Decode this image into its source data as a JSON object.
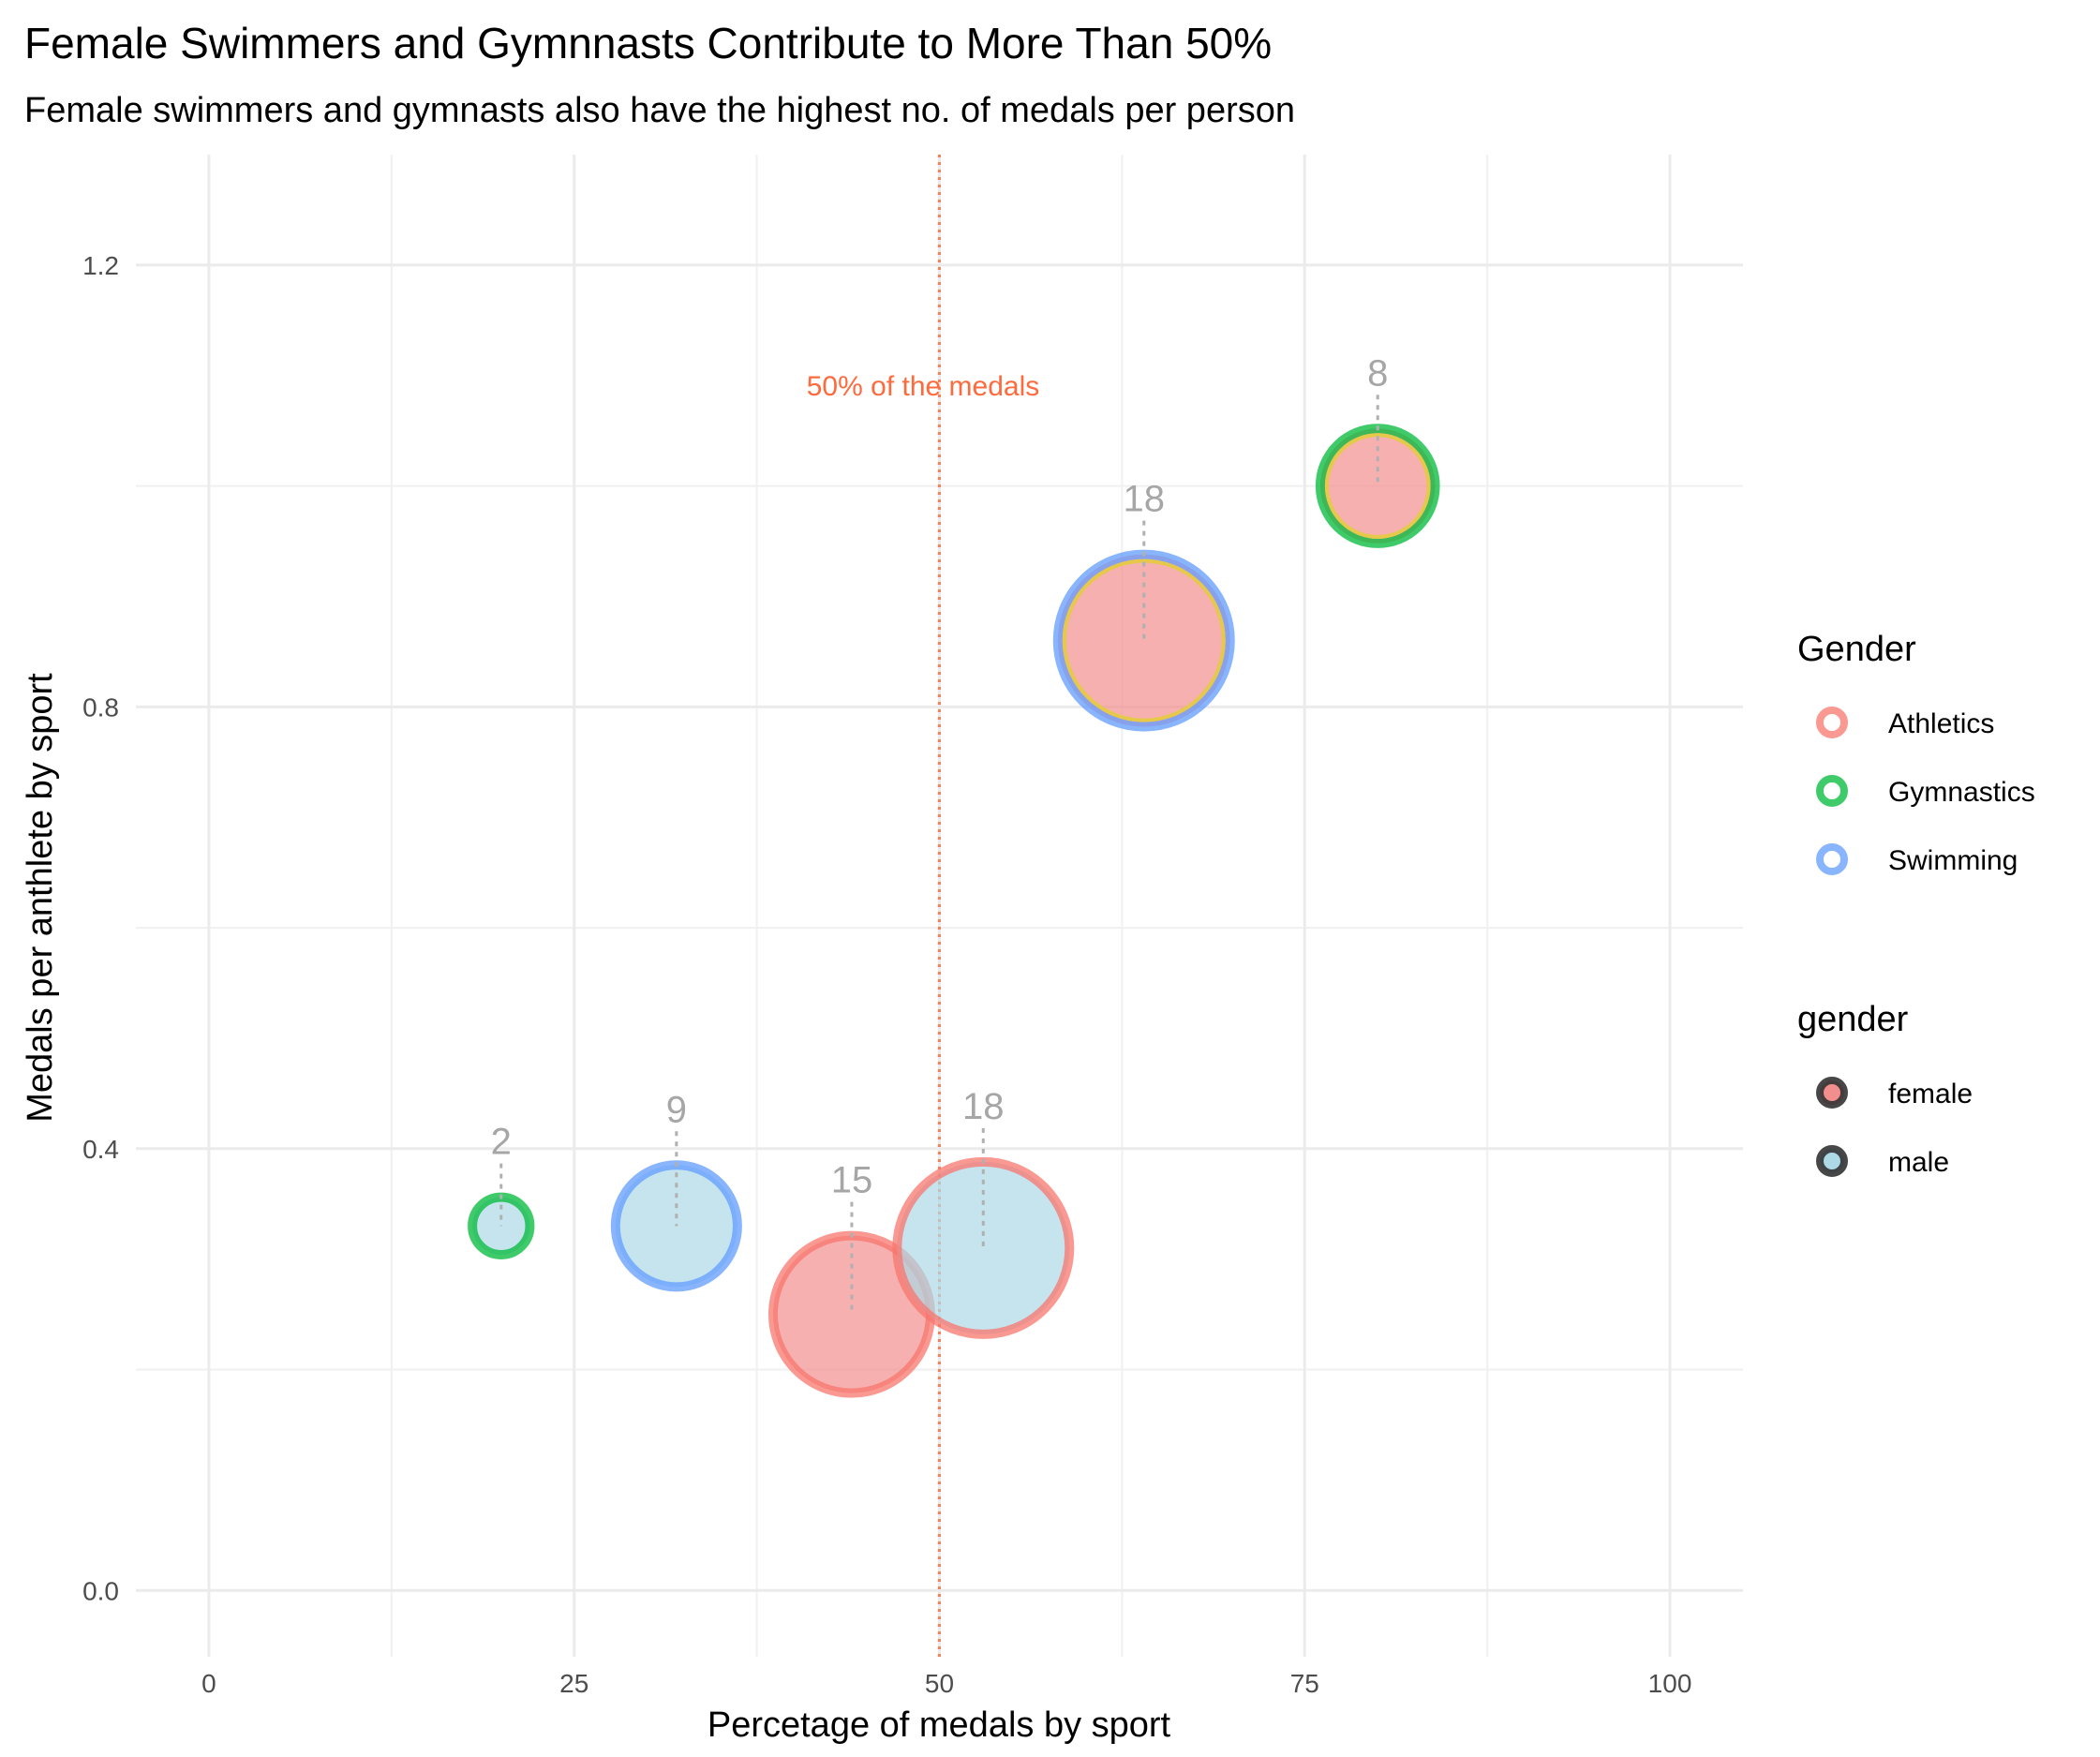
{
  "chart_data": {
    "type": "scatter",
    "title": "Female Swimmers and Gymnnasts Contribute to More Than 50%",
    "subtitle": "Female swimmers and gymnasts also have the highest no. of medals per person",
    "xlabel": "Percetage of medals by sport",
    "ylabel": "Medals per anthlete by sport",
    "xlim": [
      -5,
      105
    ],
    "ylim": [
      -0.06,
      1.3
    ],
    "x_ticks": [
      0,
      25,
      50,
      75,
      100
    ],
    "x_tick_labels": [
      "0",
      "25",
      "50",
      "75",
      "100"
    ],
    "y_ticks": [
      0.0,
      0.4,
      0.8,
      1.2
    ],
    "y_tick_labels": [
      "0.0",
      "0.4",
      "0.8",
      "1.2"
    ],
    "grid": true,
    "reference_line": {
      "x": 50,
      "label": "50% of the medals",
      "color": "#ff6a3d"
    },
    "colors": {
      "Athletics": "#f8766d",
      "Gymnastics": "#00ba38",
      "Swimming": "#619cff",
      "female": "#f28e8e",
      "male": "#add8e6",
      "highlight": "#e6c84a",
      "count_label": "#a6a6a6"
    },
    "points": [
      {
        "sport": "Gymnastics",
        "gender": "male",
        "x": 20,
        "y": 0.33,
        "count": "2",
        "size": 2
      },
      {
        "sport": "Swimming",
        "gender": "male",
        "x": 32,
        "y": 0.33,
        "count": "9",
        "size": 9
      },
      {
        "sport": "Athletics",
        "gender": "female",
        "x": 44,
        "y": 0.25,
        "count": "15",
        "size": 15
      },
      {
        "sport": "Athletics",
        "gender": "male",
        "x": 53,
        "y": 0.31,
        "count": "18",
        "size": 18
      },
      {
        "sport": "Swimming",
        "gender": "female",
        "x": 64,
        "y": 0.86,
        "count": "18",
        "size": 18,
        "highlight": true
      },
      {
        "sport": "Gymnastics",
        "gender": "female",
        "x": 80,
        "y": 1.0,
        "count": "8",
        "size": 8,
        "highlight": true
      }
    ],
    "legends": [
      {
        "title": "Gender",
        "entries": [
          {
            "label": "Athletics",
            "color": "#f8766d"
          },
          {
            "label": "Gymnastics",
            "color": "#00ba38"
          },
          {
            "label": "Swimming",
            "color": "#619cff"
          }
        ]
      },
      {
        "title": "gender",
        "entries": [
          {
            "label": "female",
            "color": "#f28e8e"
          },
          {
            "label": "male",
            "color": "#add8e6"
          }
        ]
      }
    ],
    "legend_position": "right"
  }
}
